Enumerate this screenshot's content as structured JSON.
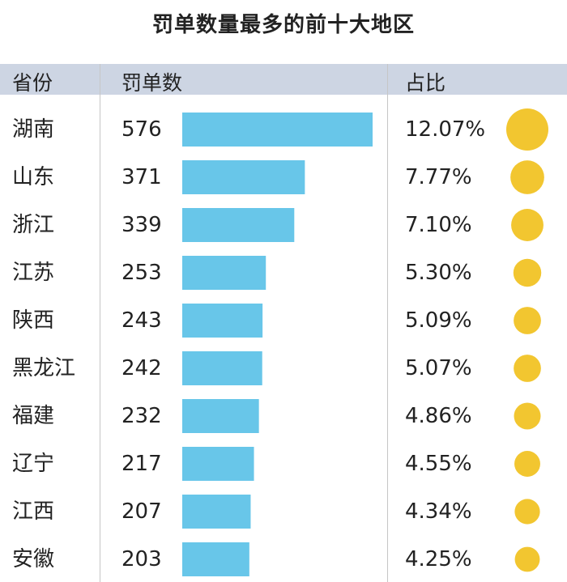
{
  "chart_data": {
    "type": "table",
    "title": "罚单数量最多的前十大地区",
    "columns": [
      "省份",
      "罚单数",
      "占比"
    ],
    "rows": [
      {
        "province": "湖南",
        "count": 576,
        "share": 12.07,
        "count_label": "576",
        "share_label": "12.07%"
      },
      {
        "province": "山东",
        "count": 371,
        "share": 7.77,
        "count_label": "371",
        "share_label": "7.77%"
      },
      {
        "province": "浙江",
        "count": 339,
        "share": 7.1,
        "count_label": "339",
        "share_label": "7.10%"
      },
      {
        "province": "江苏",
        "count": 253,
        "share": 5.3,
        "count_label": "253",
        "share_label": "5.30%"
      },
      {
        "province": "陕西",
        "count": 243,
        "share": 5.09,
        "count_label": "243",
        "share_label": "5.09%"
      },
      {
        "province": "黑龙江",
        "count": 242,
        "share": 5.07,
        "count_label": "242",
        "share_label": "5.07%"
      },
      {
        "province": "福建",
        "count": 232,
        "share": 4.86,
        "count_label": "232",
        "share_label": "4.86%"
      },
      {
        "province": "辽宁",
        "count": 217,
        "share": 4.55,
        "count_label": "217",
        "share_label": "4.55%"
      },
      {
        "province": "江西",
        "count": 207,
        "share": 4.34,
        "count_label": "207",
        "share_label": "4.34%"
      },
      {
        "province": "安徽",
        "count": 203,
        "share": 4.25,
        "count_label": "203",
        "share_label": "4.25%"
      }
    ],
    "colors": {
      "bar": "#68c6e9",
      "circle": "#f2c630",
      "header_bg": "#cdd5e3"
    }
  }
}
